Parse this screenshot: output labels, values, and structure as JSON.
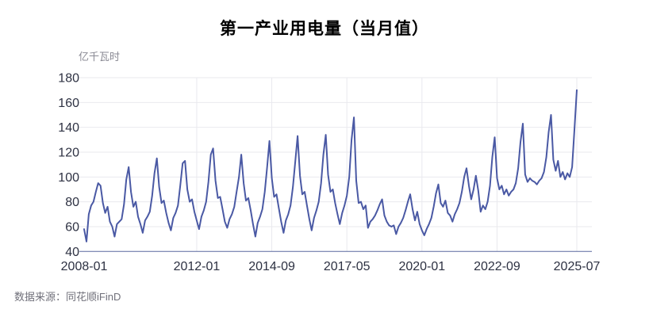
{
  "title": "第一产业用电量（当月值）",
  "unit_label": "亿千瓦时",
  "source": "数据来源：同花顺iFinD",
  "colors": {
    "line": "#4a59a4",
    "axis_baseline": "#5a699f",
    "grid": "#e9e9ee",
    "tick_text": "#2d3142",
    "muted_text": "#8a8a94"
  },
  "chart_data": {
    "type": "line",
    "title": "第一产业用电量（当月值）",
    "ylabel": "亿千瓦时",
    "frequency": "monthly",
    "x_start": "2008-01",
    "x_end": "2025-07",
    "ylim": [
      40,
      180
    ],
    "y_ticks": [
      40,
      60,
      80,
      100,
      120,
      140,
      160,
      180
    ],
    "grid": "horizontal and vertical at x ticks",
    "legend_position": "none",
    "x_ticks": [
      {
        "label": "2008-01",
        "month_index": 0
      },
      {
        "label": "2012-01",
        "month_index": 48
      },
      {
        "label": "2014-09",
        "month_index": 80
      },
      {
        "label": "2017-05",
        "month_index": 112
      },
      {
        "label": "2020-01",
        "month_index": 144
      },
      {
        "label": "2022-09",
        "month_index": 176
      },
      {
        "label": "2025-07",
        "month_index": 210
      }
    ],
    "series": [
      {
        "name": "第一产业用电量（当月值）",
        "values": [
          58,
          48,
          70,
          77,
          80,
          88,
          95,
          93,
          79,
          71,
          76,
          64,
          60,
          52,
          62,
          64,
          66,
          78,
          98,
          108,
          88,
          76,
          80,
          68,
          62,
          55,
          65,
          68,
          72,
          85,
          103,
          115,
          92,
          79,
          81,
          71,
          63,
          57,
          67,
          71,
          77,
          93,
          111,
          113,
          90,
          80,
          82,
          72,
          65,
          58,
          68,
          73,
          80,
          96,
          118,
          123,
          97,
          83,
          84,
          74,
          64,
          59,
          66,
          70,
          76,
          88,
          100,
          118,
          95,
          81,
          83,
          73,
          62,
          52,
          63,
          68,
          74,
          88,
          108,
          129,
          99,
          84,
          86,
          75,
          64,
          55,
          65,
          70,
          77,
          92,
          112,
          133,
          101,
          86,
          88,
          77,
          66,
          57,
          67,
          73,
          80,
          95,
          118,
          134,
          102,
          88,
          90,
          79,
          70,
          62,
          71,
          77,
          85,
          100,
          130,
          148,
          97,
          79,
          80,
          74,
          77,
          59,
          64,
          66,
          69,
          73,
          78,
          82,
          69,
          64,
          61,
          60,
          61,
          54,
          60,
          63,
          67,
          73,
          80,
          86,
          74,
          65,
          72,
          62,
          57,
          53,
          58,
          62,
          67,
          76,
          87,
          94,
          79,
          76,
          81,
          71,
          69,
          64,
          70,
          74,
          79,
          88,
          100,
          107,
          93,
          82,
          90,
          101,
          89,
          72,
          77,
          74,
          80,
          93,
          116,
          132,
          99,
          90,
          93,
          86,
          90,
          85,
          88,
          90,
          95,
          107,
          128,
          143,
          102,
          96,
          99,
          97,
          96,
          94,
          97,
          99,
          104,
          116,
          136,
          150,
          114,
          105,
          113,
          100,
          104,
          98,
          103,
          100,
          108,
          138,
          170
        ]
      }
    ]
  }
}
